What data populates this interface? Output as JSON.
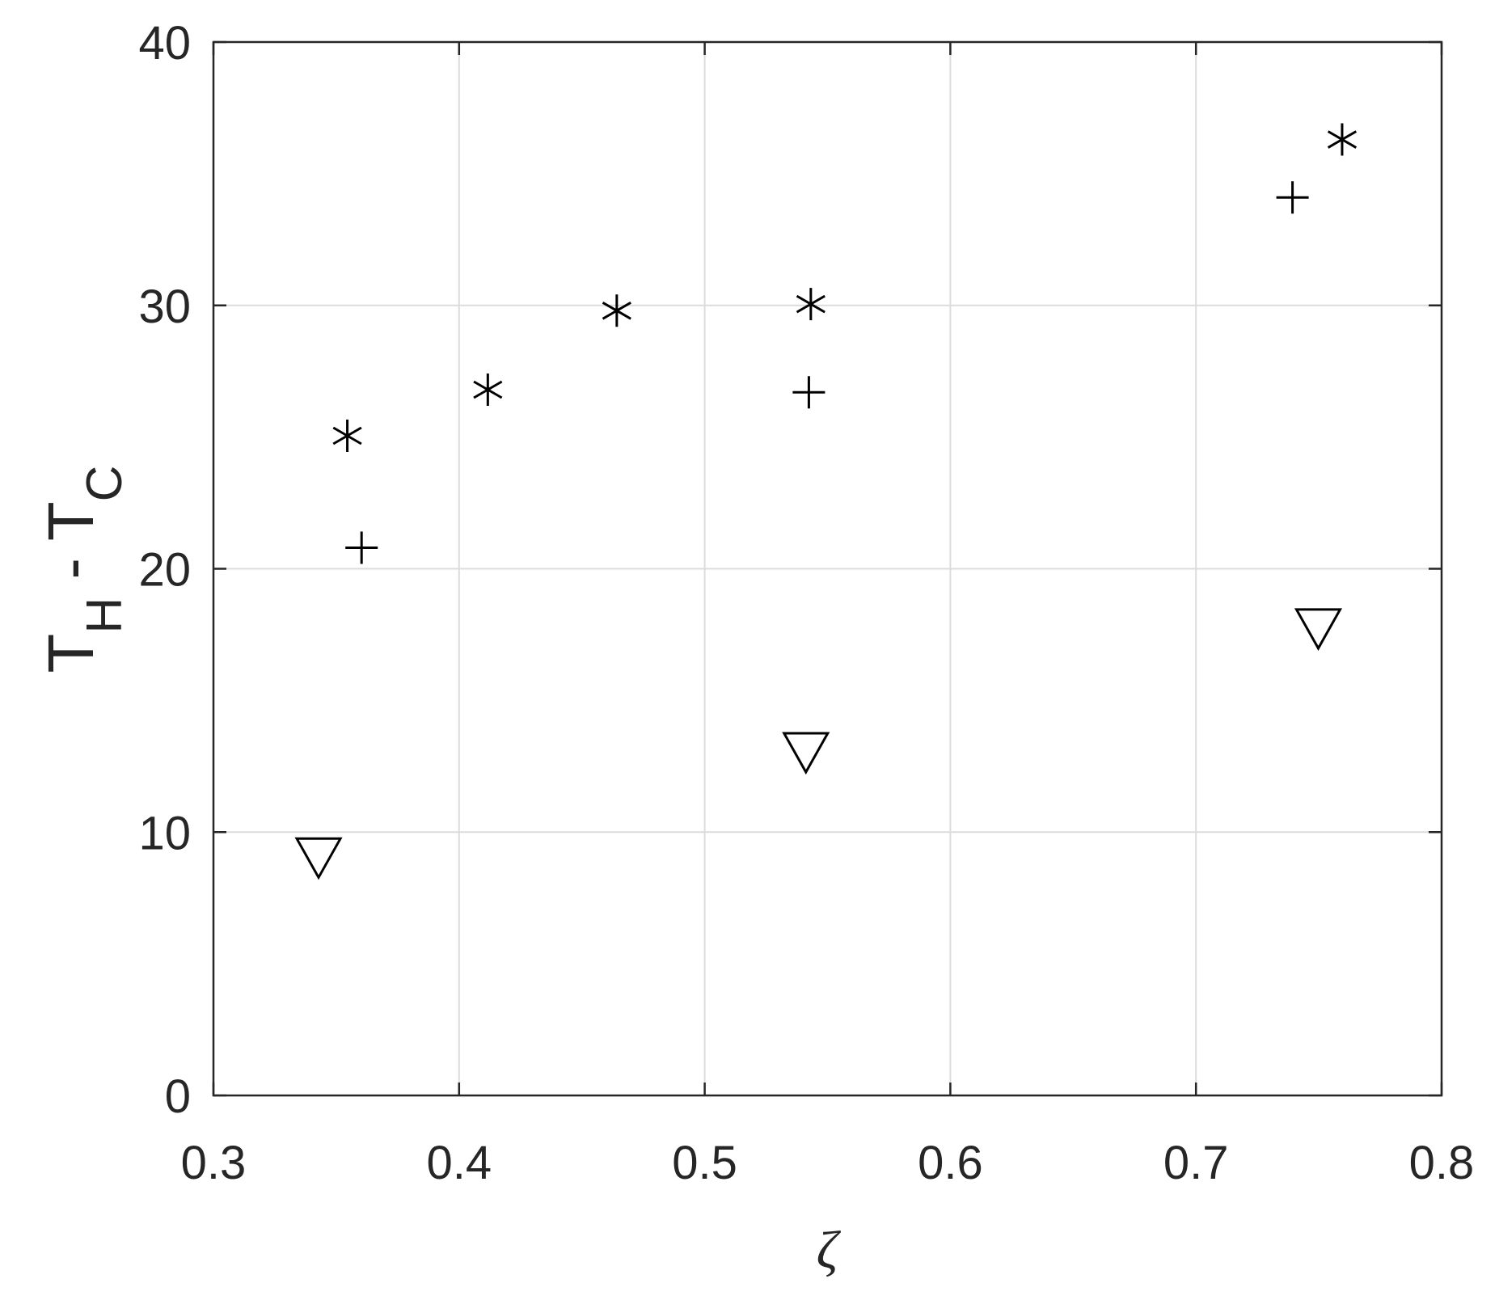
{
  "chart_data": {
    "type": "scatter",
    "xlabel": "ζ",
    "ylabel": [
      {
        "text": "T"
      },
      {
        "text": "H",
        "subscript": true
      },
      {
        "text": " - T"
      },
      {
        "text": "C",
        "subscript": true
      }
    ],
    "xlim": [
      0.3,
      0.8
    ],
    "xticks": [
      0.3,
      0.4,
      0.5,
      0.6,
      0.7,
      0.8
    ],
    "ylim": [
      0,
      40
    ],
    "yticks": [
      0,
      10,
      20,
      30,
      40
    ],
    "grid": true,
    "series": [
      {
        "marker": "asterisk",
        "color": "#000000",
        "x": [
          0.3545,
          0.4117,
          0.4642,
          0.5432,
          0.7595
        ],
        "values": [
          25.05,
          26.8,
          29.8,
          30.05,
          36.3
        ]
      },
      {
        "marker": "plus",
        "color": "#000000",
        "x": [
          0.3603,
          0.5424,
          0.7393
        ],
        "values": [
          20.8,
          26.7,
          34.1
        ]
      },
      {
        "marker": "triangle-down",
        "color": "#000000",
        "x": [
          0.3428,
          0.5412,
          0.7498
        ],
        "values": [
          9.2,
          13.2,
          17.9
        ]
      }
    ]
  }
}
